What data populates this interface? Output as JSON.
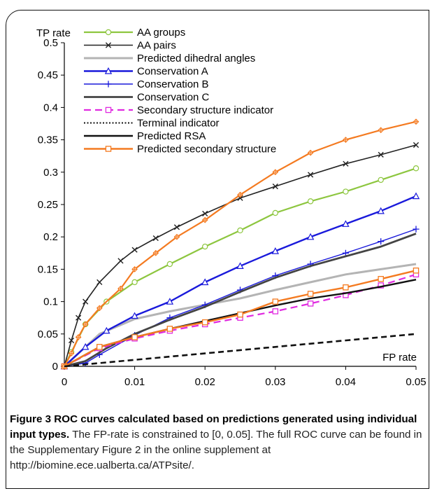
{
  "chart_data": {
    "type": "line",
    "xlabel": "FP rate",
    "ylabel": "TP rate",
    "xlim": [
      0,
      0.05
    ],
    "ylim": [
      0,
      0.5
    ],
    "xticks": [
      "0",
      "0.01",
      "0.02",
      "0.03",
      "0.04",
      "0.05"
    ],
    "yticks": [
      "0",
      "0.05",
      "0.1",
      "0.15",
      "0.2",
      "0.25",
      "0.3",
      "0.35",
      "0.4",
      "0.45",
      "0.5"
    ],
    "legend": "top-left",
    "series": [
      {
        "name": "AA groups",
        "color": "#8dc63f",
        "dash": "",
        "width": 2.2,
        "marker": "circle",
        "x": [
          0,
          0.001,
          0.003,
          0.006,
          0.01,
          0.015,
          0.02,
          0.025,
          0.03,
          0.035,
          0.04,
          0.045,
          0.05
        ],
        "y": [
          0,
          0.022,
          0.065,
          0.1,
          0.13,
          0.158,
          0.185,
          0.21,
          0.237,
          0.255,
          0.27,
          0.288,
          0.306
        ]
      },
      {
        "name": "AA pairs",
        "color": "#222222",
        "dash": "",
        "width": 1.6,
        "marker": "x",
        "x": [
          0,
          0.001,
          0.002,
          0.003,
          0.005,
          0.008,
          0.01,
          0.013,
          0.016,
          0.02,
          0.025,
          0.03,
          0.035,
          0.04,
          0.045,
          0.05
        ],
        "y": [
          0,
          0.04,
          0.075,
          0.1,
          0.13,
          0.163,
          0.18,
          0.198,
          0.215,
          0.236,
          0.26,
          0.278,
          0.296,
          0.313,
          0.327,
          0.342
        ]
      },
      {
        "name": "Predicted dihedral angles",
        "color": "#b4b4b4",
        "dash": "",
        "width": 3,
        "marker": "none",
        "x": [
          0,
          0.005,
          0.01,
          0.015,
          0.02,
          0.025,
          0.03,
          0.035,
          0.04,
          0.045,
          0.05
        ],
        "y": [
          0,
          0.05,
          0.073,
          0.085,
          0.095,
          0.105,
          0.118,
          0.13,
          0.142,
          0.15,
          0.158
        ]
      },
      {
        "name": "Conservation A",
        "color": "#1a1adb",
        "dash": "",
        "width": 2.4,
        "marker": "triangle",
        "x": [
          0,
          0.003,
          0.006,
          0.01,
          0.015,
          0.02,
          0.025,
          0.03,
          0.035,
          0.04,
          0.045,
          0.05
        ],
        "y": [
          0,
          0.03,
          0.055,
          0.078,
          0.1,
          0.13,
          0.155,
          0.178,
          0.2,
          0.22,
          0.24,
          0.263
        ]
      },
      {
        "name": "Conservation B",
        "color": "#1a1adb",
        "dash": "",
        "width": 1.4,
        "marker": "plus",
        "x": [
          0,
          0.003,
          0.005,
          0.01,
          0.015,
          0.02,
          0.025,
          0.03,
          0.035,
          0.04,
          0.045,
          0.05
        ],
        "y": [
          0,
          0.005,
          0.018,
          0.048,
          0.075,
          0.095,
          0.118,
          0.14,
          0.158,
          0.175,
          0.193,
          0.212
        ]
      },
      {
        "name": "Conservation C",
        "color": "#444444",
        "dash": "",
        "width": 2.8,
        "marker": "none",
        "x": [
          0,
          0.003,
          0.006,
          0.01,
          0.015,
          0.02,
          0.025,
          0.03,
          0.035,
          0.04,
          0.045,
          0.05
        ],
        "y": [
          0,
          0.008,
          0.028,
          0.05,
          0.072,
          0.092,
          0.115,
          0.137,
          0.155,
          0.17,
          0.185,
          0.205
        ]
      },
      {
        "name": "Secondary structure indicator",
        "color": "#e02ae0",
        "dash": "10,6",
        "width": 2.2,
        "marker": "square",
        "x": [
          0,
          0.005,
          0.01,
          0.015,
          0.02,
          0.025,
          0.03,
          0.035,
          0.04,
          0.045,
          0.05
        ],
        "y": [
          0,
          0.028,
          0.043,
          0.055,
          0.065,
          0.075,
          0.085,
          0.097,
          0.11,
          0.125,
          0.142
        ]
      },
      {
        "name": "Terminal indicator",
        "color": "#111111",
        "dash": "2,2.5",
        "width": 2,
        "marker": "none",
        "x": [],
        "y": []
      },
      {
        "name": "Predicted RSA",
        "color": "#111111",
        "dash": "",
        "width": 2.4,
        "marker": "none",
        "x": [
          0,
          0.005,
          0.01,
          0.015,
          0.02,
          0.025,
          0.03,
          0.035,
          0.04,
          0.045,
          0.05
        ],
        "y": [
          0,
          0.03,
          0.045,
          0.058,
          0.07,
          0.082,
          0.094,
          0.105,
          0.113,
          0.123,
          0.134
        ]
      },
      {
        "name": "Predicted secondary structure",
        "color": "#f47a20",
        "dash": "",
        "width": 2.4,
        "marker": "square",
        "x": [
          0,
          0.005,
          0.01,
          0.015,
          0.02,
          0.025,
          0.03,
          0.035,
          0.04,
          0.045,
          0.05
        ],
        "y": [
          0,
          0.03,
          0.045,
          0.058,
          0.068,
          0.08,
          0.1,
          0.112,
          0.122,
          0.135,
          0.148
        ]
      },
      {
        "name": "",
        "color": "#f47a20",
        "dash": "",
        "width": 2.2,
        "marker": "diamond-plus",
        "x": [
          0,
          0.001,
          0.002,
          0.003,
          0.005,
          0.008,
          0.01,
          0.013,
          0.016,
          0.02,
          0.025,
          0.03,
          0.035,
          0.04,
          0.045,
          0.05
        ],
        "y": [
          0,
          0.02,
          0.045,
          0.065,
          0.09,
          0.12,
          0.15,
          0.175,
          0.2,
          0.226,
          0.265,
          0.3,
          0.33,
          0.35,
          0.365,
          0.378
        ]
      },
      {
        "name": "",
        "color": "#111111",
        "dash": "8,5",
        "width": 2.6,
        "marker": "none",
        "x": [
          0,
          0.05
        ],
        "y": [
          0,
          0.05
        ]
      }
    ]
  },
  "caption": {
    "title": "Figure 3 ROC curves calculated based on predictions generated using individual input types.",
    "body": "The FP-rate is constrained to [0, 0.05]. The full ROC curve can be found in the Supplementary Figure 2 in the online supplement at http://biomine.ece.ualberta.ca/ATPsite/."
  }
}
